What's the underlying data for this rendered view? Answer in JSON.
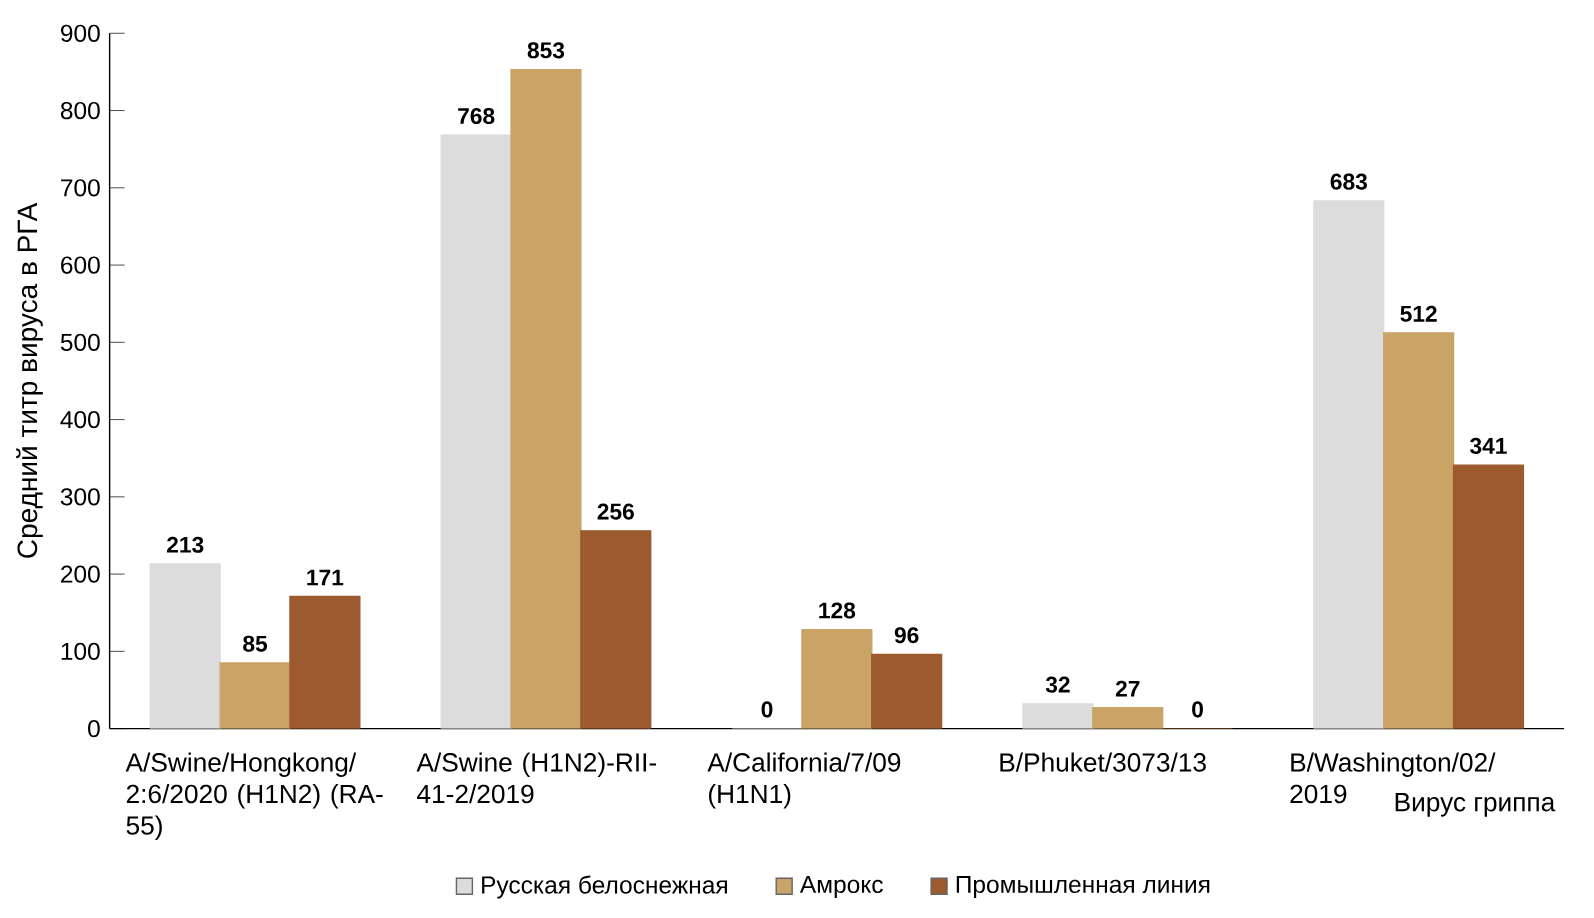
{
  "chart_data": {
    "type": "bar",
    "xlabel": "Вирус гриппа",
    "ylabel": "Средний титр вируса в РГА",
    "categories": [
      "A/Swine/Hongkong/2:6/2020 (H1N2) (RA-55)",
      "A/Swine (H1N2)-RII-41-2/2019",
      "A/California/7/09 (H1N1)",
      "B/Phuket/3073/13",
      "B/Washington/02/2019"
    ],
    "series": [
      {
        "name": "Русская белоснежная",
        "color": "#dcdcdc",
        "values": [
          213,
          768,
          0,
          32,
          683
        ]
      },
      {
        "name": "Амрокс",
        "color": "#c9a466",
        "values": [
          85,
          853,
          128,
          27,
          512
        ]
      },
      {
        "name": "Промышленная линия",
        "color": "#9c5a2e",
        "values": [
          171,
          256,
          96,
          0,
          341
        ]
      }
    ],
    "ylim": [
      0,
      900
    ],
    "yticks": [
      0,
      100,
      200,
      300,
      400,
      500,
      600,
      700,
      800,
      900
    ],
    "grid": false,
    "legend": "bottom",
    "data_labels": true
  }
}
